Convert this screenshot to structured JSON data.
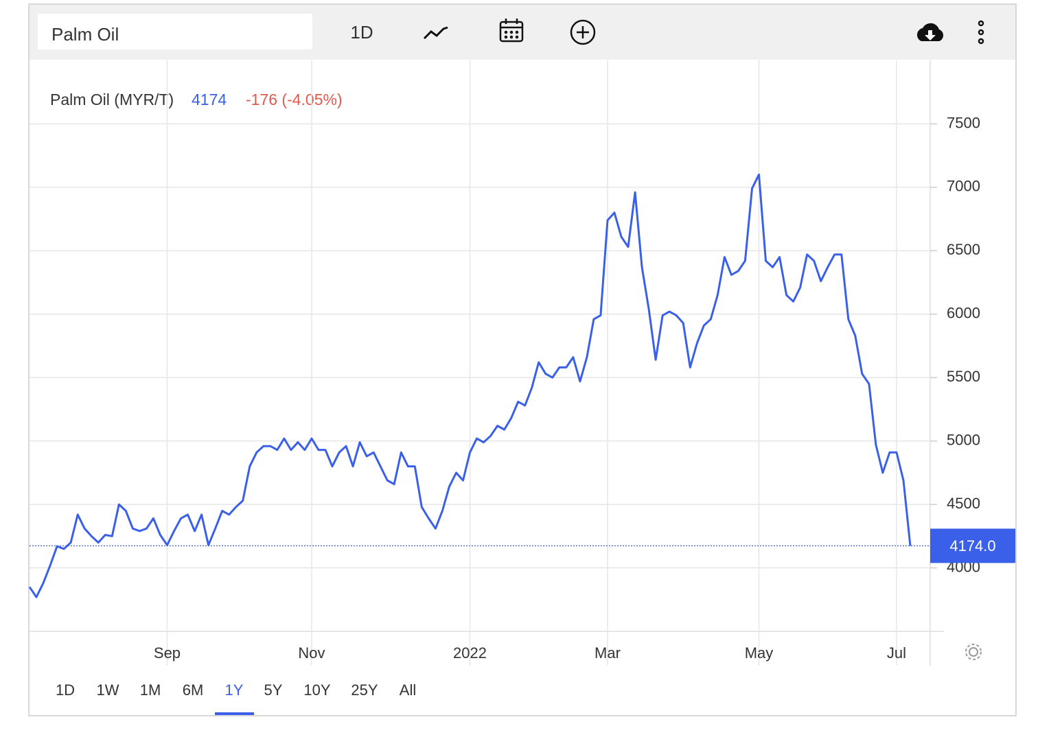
{
  "search_text": "Palm Oil",
  "toolbar_interval": "1D",
  "legend_name": "Palm Oil (MYR/T)",
  "legend_value": 4174,
  "legend_change": "-176 (-4.05%)",
  "price_tag": "4174.0",
  "ranges": [
    "1D",
    "1W",
    "1M",
    "6M",
    "1Y",
    "5Y",
    "10Y",
    "25Y",
    "All"
  ],
  "active_range": "1Y",
  "chart_data": {
    "type": "line",
    "categories": [
      null,
      null,
      null,
      null,
      null,
      null,
      null,
      null,
      null,
      null,
      null,
      null,
      null,
      null,
      null,
      null,
      null,
      null,
      null,
      null,
      "Sep",
      null,
      null,
      null,
      null,
      null,
      null,
      null,
      null,
      null,
      null,
      null,
      null,
      null,
      null,
      null,
      null,
      null,
      null,
      null,
      null,
      "Nov",
      null,
      null,
      null,
      null,
      null,
      null,
      null,
      null,
      null,
      null,
      null,
      null,
      null,
      null,
      null,
      null,
      null,
      null,
      null,
      null,
      null,
      null,
      "2022",
      null,
      null,
      null,
      null,
      null,
      null,
      null,
      null,
      null,
      null,
      null,
      null,
      null,
      null,
      null,
      null,
      null,
      null,
      null,
      "Mar",
      null,
      null,
      null,
      null,
      null,
      null,
      null,
      null,
      null,
      null,
      null,
      null,
      null,
      null,
      null,
      null,
      null,
      null,
      null,
      null,
      null,
      "May",
      null,
      null,
      null,
      null,
      null,
      null,
      null,
      null,
      null,
      null,
      null,
      null,
      null,
      null,
      null,
      null,
      null,
      null,
      null,
      "Jul",
      null,
      null
    ],
    "series": [
      {
        "name": "Palm Oil (MYR/T)",
        "color": "#3a5fe8",
        "values": [
          3850,
          3770,
          3880,
          4020,
          4170,
          4150,
          4200,
          4420,
          4310,
          4250,
          4200,
          4260,
          4250,
          4500,
          4450,
          4310,
          4290,
          4310,
          4390,
          4260,
          4180,
          4290,
          4390,
          4420,
          4290,
          4420,
          4180,
          4310,
          4450,
          4420,
          4480,
          4530,
          4800,
          4910,
          4960,
          4960,
          4930,
          5020,
          4930,
          4990,
          4930,
          5020,
          4930,
          4930,
          4800,
          4910,
          4960,
          4800,
          4990,
          4880,
          4910,
          4800,
          4690,
          4660,
          4910,
          4800,
          4800,
          4480,
          4390,
          4310,
          4450,
          4640,
          4750,
          4690,
          4910,
          5020,
          4990,
          5040,
          5120,
          5090,
          5180,
          5310,
          5280,
          5420,
          5620,
          5530,
          5500,
          5580,
          5580,
          5660,
          5470,
          5660,
          5960,
          5990,
          6740,
          6800,
          6610,
          6530,
          6960,
          6370,
          6040,
          5640,
          5990,
          6020,
          5990,
          5930,
          5580,
          5770,
          5910,
          5960,
          6150,
          6450,
          6310,
          6340,
          6420,
          6990,
          7100,
          6420,
          6370,
          6450,
          6150,
          6100,
          6210,
          6470,
          6420,
          6260,
          6370,
          6470,
          6470,
          5960,
          5830,
          5530,
          5450,
          4970,
          4750,
          4910,
          4910,
          4690,
          4174
        ]
      }
    ],
    "ylim": [
      3500,
      8000
    ],
    "yticks": [
      4000,
      4500,
      5000,
      5500,
      6000,
      6500,
      7000,
      7500
    ],
    "grid": true
  }
}
